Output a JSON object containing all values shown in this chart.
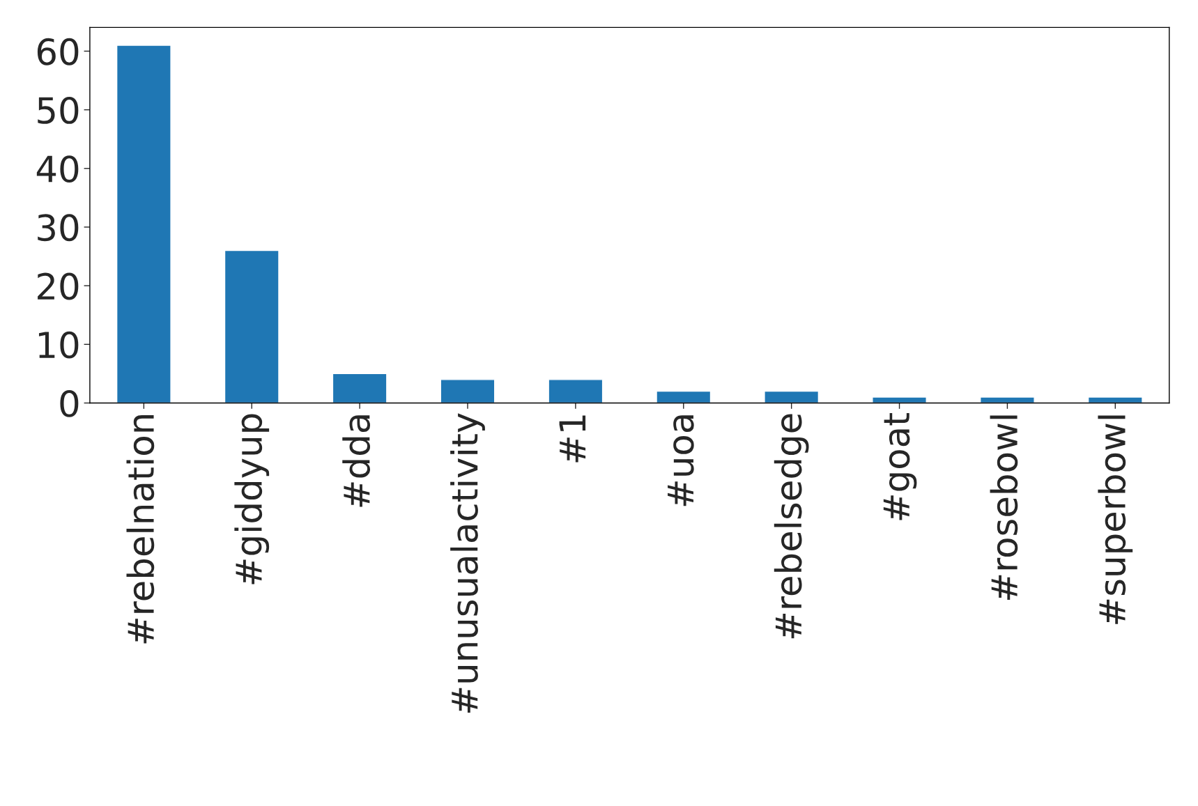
{
  "chart_data": {
    "type": "bar",
    "categories": [
      "#rebelnation",
      "#giddyup",
      "#dda",
      "#unusualactivity",
      "#1",
      "#uoa",
      "#rebelsedge",
      "#goat",
      "#rosebowl",
      "#superbowl"
    ],
    "values": [
      61,
      26,
      5,
      4,
      4,
      2,
      2,
      1,
      1,
      1
    ],
    "color": "#1f77b4",
    "ylim": [
      0,
      64.05
    ],
    "yticks": [
      0,
      10,
      20,
      30,
      40,
      50,
      60
    ],
    "grid": false
  }
}
